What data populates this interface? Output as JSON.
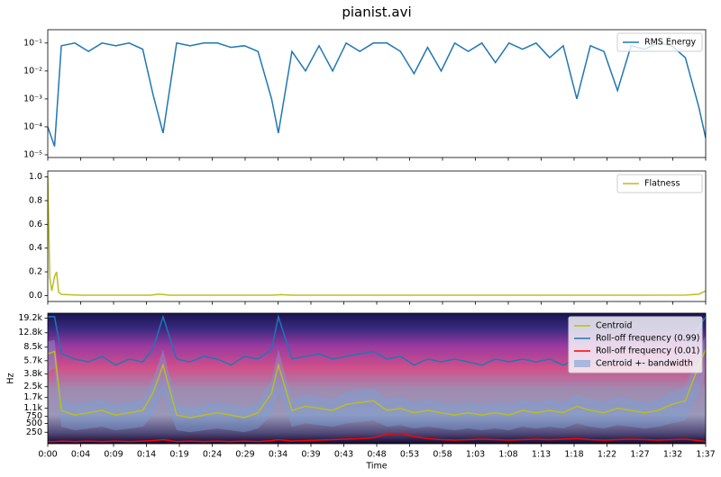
{
  "chart_data": [
    {
      "type": "line",
      "title": "pianist.avi",
      "yscale": "log",
      "xlim": [
        0,
        97
      ],
      "ylim": [
        8e-06,
        0.3
      ],
      "yticks": [
        {
          "value": 1e-05,
          "label": "10⁻⁵"
        },
        {
          "value": 0.0001,
          "label": "10⁻⁴"
        },
        {
          "value": 0.001,
          "label": "10⁻³"
        },
        {
          "value": 0.01,
          "label": "10⁻²"
        },
        {
          "value": 0.1,
          "label": "10⁻¹"
        }
      ],
      "legend": "upper right",
      "x": [
        0,
        1,
        2,
        4,
        6,
        8,
        10,
        12,
        14,
        15.5,
        17,
        19,
        21,
        23,
        25,
        27,
        29,
        31,
        33,
        34,
        36,
        38,
        40,
        42,
        44,
        46,
        48,
        50,
        52,
        54,
        56,
        58,
        60,
        62,
        64,
        66,
        68,
        70,
        72,
        74,
        76,
        78,
        80,
        82,
        84,
        86,
        88,
        90,
        92,
        94,
        96,
        97
      ],
      "series": [
        {
          "name": "RMS Energy",
          "color": "#1f77b4",
          "values": [
            0.0001,
            2e-05,
            0.08,
            0.1,
            0.05,
            0.1,
            0.08,
            0.1,
            0.06,
            0.0015,
            6e-05,
            0.1,
            0.08,
            0.1,
            0.1,
            0.07,
            0.08,
            0.05,
            0.001,
            6e-05,
            0.05,
            0.01,
            0.08,
            0.01,
            0.1,
            0.05,
            0.1,
            0.1,
            0.05,
            0.008,
            0.07,
            0.01,
            0.1,
            0.05,
            0.1,
            0.02,
            0.1,
            0.06,
            0.1,
            0.03,
            0.08,
            0.001,
            0.08,
            0.05,
            0.002,
            0.08,
            0.06,
            0.1,
            0.08,
            0.03,
            0.0005,
            4e-05
          ]
        }
      ]
    },
    {
      "type": "line",
      "xlim": [
        0,
        97
      ],
      "ylim": [
        -0.05,
        1.05
      ],
      "yticks": [
        {
          "value": 0,
          "label": "0.0"
        },
        0.2,
        0.4,
        0.6,
        0.8,
        {
          "value": 1,
          "label": "1.0"
        }
      ],
      "legend": "upper right",
      "x": [
        0,
        0.3,
        0.6,
        1,
        1.3,
        1.6,
        2,
        5,
        10,
        15,
        16.5,
        18,
        25,
        33,
        34.5,
        36,
        45,
        55,
        65,
        75,
        85,
        94,
        96,
        97
      ],
      "series": [
        {
          "name": "Flatness",
          "color": "#bcbd22",
          "values": [
            1.0,
            0.15,
            0.04,
            0.16,
            0.2,
            0.03,
            0.01,
            0.003,
            0.003,
            0.003,
            0.012,
            0.003,
            0.003,
            0.003,
            0.008,
            0.003,
            0.003,
            0.003,
            0.003,
            0.003,
            0.003,
            0.004,
            0.012,
            0.04
          ]
        }
      ]
    },
    {
      "type": "line",
      "yscale": "mel",
      "xlim": [
        0,
        97
      ],
      "ylim": [
        0,
        22050
      ],
      "ylabel": "Hz",
      "xlabel": "Time",
      "yticks": [
        250,
        500,
        750,
        {
          "value": 1100,
          "label": "1.1k"
        },
        {
          "value": 1700,
          "label": "1.7k"
        },
        {
          "value": 2500,
          "label": "2.5k"
        },
        {
          "value": 3800,
          "label": "3.8k"
        },
        {
          "value": 5700,
          "label": "5.7k"
        },
        {
          "value": 8500,
          "label": "8.5k"
        },
        {
          "value": 12800,
          "label": "12.8k"
        },
        {
          "value": 19200,
          "label": "19.2k"
        }
      ],
      "xticks": [
        {
          "value": 0,
          "label": "0:00"
        },
        {
          "value": 4.85,
          "label": "0:04"
        },
        {
          "value": 9.7,
          "label": "0:09"
        },
        {
          "value": 14.55,
          "label": "0:14"
        },
        {
          "value": 19.4,
          "label": "0:19"
        },
        {
          "value": 24.25,
          "label": "0:24"
        },
        {
          "value": 29.1,
          "label": "0:29"
        },
        {
          "value": 33.95,
          "label": "0:34"
        },
        {
          "value": 38.8,
          "label": "0:39"
        },
        {
          "value": 43.65,
          "label": "0:43"
        },
        {
          "value": 48.5,
          "label": "0:48"
        },
        {
          "value": 53.35,
          "label": "0:53"
        },
        {
          "value": 58.2,
          "label": "0:58"
        },
        {
          "value": 63.05,
          "label": "1:03"
        },
        {
          "value": 67.9,
          "label": "1:08"
        },
        {
          "value": 72.75,
          "label": "1:13"
        },
        {
          "value": 77.6,
          "label": "1:18"
        },
        {
          "value": 82.45,
          "label": "1:22"
        },
        {
          "value": 87.3,
          "label": "1:27"
        },
        {
          "value": 92.15,
          "label": "1:32"
        },
        {
          "value": 97,
          "label": "1:37"
        }
      ],
      "legend": "upper right",
      "x": [
        0,
        1,
        2,
        4,
        6,
        8,
        10,
        12,
        14,
        15.5,
        17,
        19,
        21,
        23,
        25,
        27,
        29,
        31,
        33,
        34,
        36,
        38,
        40,
        42,
        44,
        46,
        48,
        50,
        52,
        54,
        56,
        58,
        60,
        62,
        64,
        66,
        68,
        70,
        72,
        74,
        76,
        78,
        80,
        82,
        84,
        86,
        88,
        90,
        92,
        94,
        96,
        97
      ],
      "series": [
        {
          "name": "Centroid",
          "color": "#bcbd22",
          "values": [
            7000,
            7500,
            1000,
            800,
            900,
            1000,
            800,
            900,
            1000,
            2000,
            5000,
            800,
            700,
            800,
            900,
            800,
            700,
            900,
            2000,
            5000,
            1000,
            1200,
            1100,
            1000,
            1300,
            1400,
            1500,
            1000,
            1100,
            900,
            1000,
            900,
            800,
            900,
            800,
            900,
            800,
            1000,
            900,
            1000,
            900,
            1200,
            1000,
            900,
            1100,
            1000,
            900,
            1000,
            1300,
            1500,
            5000,
            8000
          ]
        },
        {
          "name": "Roll-off frequency (0.99)",
          "color": "#1f77b4",
          "values": [
            20000,
            20000,
            7000,
            6000,
            5500,
            6500,
            5000,
            6000,
            5500,
            8000,
            20000,
            6000,
            5500,
            6500,
            6000,
            5000,
            6500,
            6000,
            8000,
            20000,
            6000,
            6500,
            7000,
            6000,
            6500,
            7000,
            7500,
            6000,
            6500,
            5000,
            6000,
            5500,
            6000,
            5500,
            5000,
            6000,
            5500,
            6000,
            5500,
            6000,
            5000,
            6000,
            5500,
            5000,
            6000,
            5500,
            5000,
            5500,
            6000,
            7000,
            15000,
            20000
          ]
        },
        {
          "name": "Roll-off frequency (0.01)",
          "color": "#ff0000",
          "values": [
            40,
            40,
            50,
            40,
            50,
            40,
            50,
            40,
            50,
            60,
            80,
            40,
            50,
            40,
            50,
            40,
            50,
            40,
            60,
            80,
            50,
            60,
            70,
            80,
            90,
            100,
            120,
            200,
            220,
            150,
            100,
            80,
            70,
            80,
            90,
            80,
            70,
            80,
            90,
            80,
            90,
            100,
            80,
            70,
            80,
            90,
            80,
            70,
            80,
            90,
            60,
            40
          ]
        },
        {
          "name": "Centroid +- bandwidth",
          "color": "#7a9fd4",
          "type": "band",
          "values": [
            3000,
            3000,
            600,
            500,
            550,
            600,
            500,
            550,
            600,
            1200,
            3000,
            500,
            450,
            500,
            550,
            500,
            450,
            550,
            1200,
            3000,
            600,
            700,
            650,
            600,
            800,
            850,
            900,
            600,
            650,
            550,
            600,
            550,
            500,
            550,
            500,
            550,
            500,
            600,
            550,
            600,
            550,
            700,
            600,
            550,
            650,
            600,
            550,
            600,
            800,
            900,
            3000,
            4000
          ]
        }
      ]
    }
  ]
}
